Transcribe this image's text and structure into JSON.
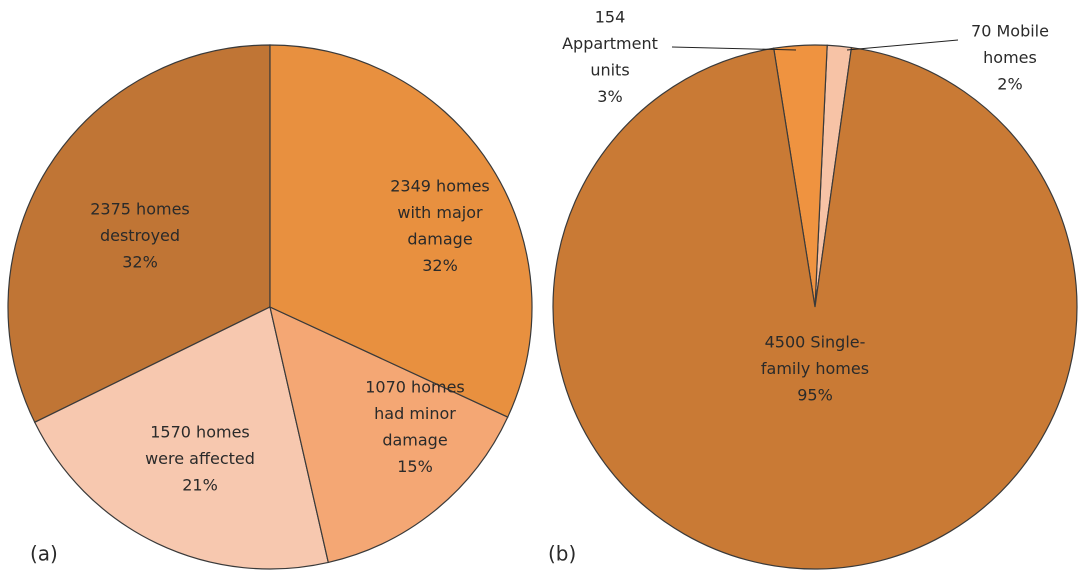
{
  "chart_data": [
    {
      "type": "pie",
      "panel_label": "(a)",
      "values": [
        2349,
        1070,
        1570,
        2375
      ],
      "value_labels": [
        [
          "2349 homes",
          "with major",
          "damage",
          "32%"
        ],
        [
          "1070 homes",
          "had minor",
          "damage",
          "15%"
        ],
        [
          "1570 homes",
          "were affected",
          "21%"
        ],
        [
          "2375 homes",
          "destroyed",
          "32%"
        ]
      ],
      "colors": [
        "#e8903f",
        "#f4a774",
        "#f7c8af",
        "#c07535"
      ]
    },
    {
      "type": "pie",
      "panel_label": "(b)",
      "values": [
        4500,
        154,
        70
      ],
      "value_labels": [
        [
          "4500 Single-",
          "family homes",
          "95%"
        ],
        [
          "154",
          "Appartment",
          "units",
          "3%"
        ],
        [
          "70 Mobile",
          "homes",
          "2%"
        ]
      ],
      "colors": [
        "#c97a35",
        "#ef9340",
        "#f7c3a6"
      ]
    }
  ]
}
